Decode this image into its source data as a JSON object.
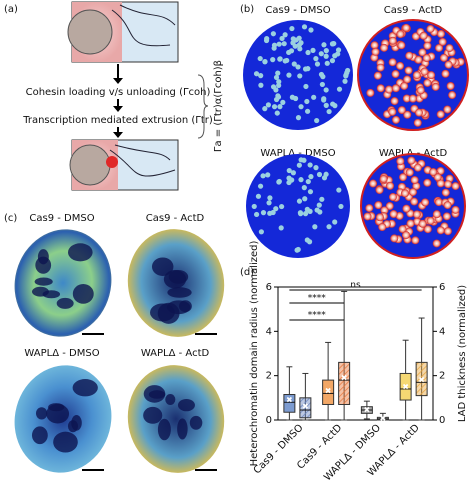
{
  "panel_a": {
    "label": "(a)",
    "step1": "Cohesin loading v/s unloading (Γcoh)",
    "step2": "Transcription mediated extrusion (Γtr)",
    "formula": "Γa = (Γtr)α(Γcoh)β"
  },
  "panel_b": {
    "label": "(b)",
    "titles": [
      "Cas9 - DMSO",
      "Cas9 - ActD",
      "WAPLΔ - DMSO",
      "WAPLΔ - ActD"
    ]
  },
  "panel_c": {
    "label": "(c)",
    "titles": [
      "Cas9 - DMSO",
      "Cas9 - ActD",
      "WAPLΔ - DMSO",
      "WAPLΔ - ActD"
    ]
  },
  "chart_data": {
    "type": "box",
    "label": "(d)",
    "y_label": "Heterochromatin domain radius (normalized)",
    "y2_label": "LAD thickness (normalized)",
    "categories": [
      "Cas9 - DMSO",
      "Cas9 - ActD",
      "WAPLΔ - DMSO",
      "WAPLΔ - ActD"
    ],
    "ylim": [
      0,
      6
    ],
    "yticks": [
      0,
      2,
      4,
      6
    ],
    "y2lim": [
      0,
      6
    ],
    "y2ticks": [
      0,
      2,
      4,
      6
    ],
    "annotations": [
      "****",
      "****",
      "ns"
    ],
    "series": [
      {
        "colors": [
          "#7c9bd0",
          "#f2a766",
          "#a8a8a8",
          "#f5d873"
        ],
        "boxes": [
          {
            "low": 0,
            "q1": 0.35,
            "median": 0.8,
            "q3": 1.15,
            "high": 2.4,
            "mean": 0.9
          },
          {
            "low": 0,
            "q1": 0.7,
            "median": 1.2,
            "q3": 1.8,
            "high": 3.5,
            "mean": 1.3
          },
          {
            "low": 0.05,
            "q1": 0.3,
            "median": 0.45,
            "q3": 0.6,
            "high": 0.85,
            "mean": 0.45
          },
          {
            "low": 0,
            "q1": 0.9,
            "median": 1.4,
            "q3": 2.1,
            "high": 3.6,
            "mean": 1.5
          }
        ]
      },
      {
        "axis": "y2",
        "hatched": true,
        "colors": [
          "#6a86c0",
          "#e8773c",
          "#888888",
          "#e8a640"
        ],
        "boxes": [
          {
            "low": 0,
            "q1": 0.1,
            "median": 0.45,
            "q3": 1.0,
            "high": 2.1,
            "mean": 0.6
          },
          {
            "low": 0,
            "q1": 0.7,
            "median": 1.8,
            "q3": 2.6,
            "high": 5.8,
            "mean": 1.9
          },
          {
            "low": 0,
            "q1": 0,
            "median": 0.05,
            "q3": 0.12,
            "high": 0.3,
            "mean": 0.06
          },
          {
            "low": 0,
            "q1": 1.1,
            "median": 1.7,
            "q3": 2.6,
            "high": 4.6,
            "mean": 1.8
          }
        ]
      }
    ]
  }
}
